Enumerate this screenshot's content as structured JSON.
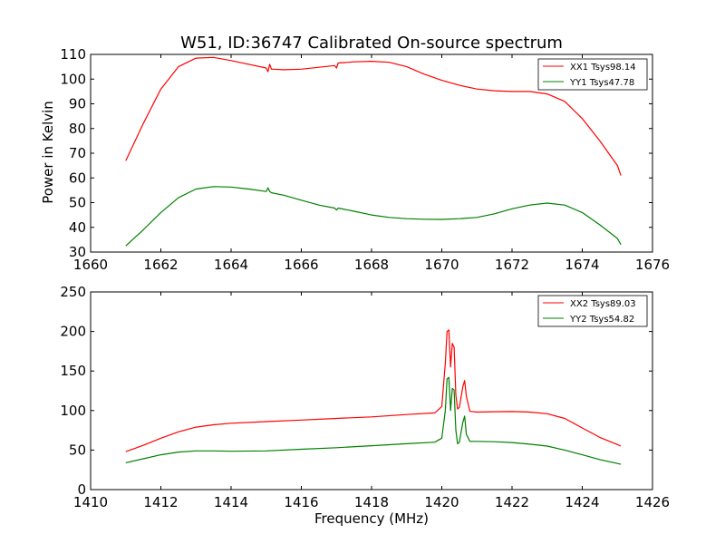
{
  "chart_data": [
    {
      "type": "line",
      "title": "W51, ID:36747 Calibrated On-source spectrum",
      "xlabel": "",
      "ylabel": "Power in Kelvin",
      "xlim": [
        1660,
        1676
      ],
      "ylim": [
        30,
        110
      ],
      "xticks": [
        "1660",
        "1662",
        "1664",
        "1666",
        "1668",
        "1670",
        "1672",
        "1674",
        "1676"
      ],
      "yticks": [
        "30",
        "40",
        "50",
        "60",
        "70",
        "80",
        "90",
        "100",
        "110"
      ],
      "legend_position": "top-right",
      "grid": false,
      "series": [
        {
          "name": "XX1 Tsys98.14",
          "color": "#ff0000",
          "x": [
            1661.0,
            1661.5,
            1662.0,
            1662.5,
            1663.0,
            1663.5,
            1664.0,
            1664.5,
            1665.0,
            1665.05,
            1665.1,
            1665.15,
            1665.2,
            1665.5,
            1666.0,
            1666.5,
            1666.95,
            1667.0,
            1667.05,
            1667.5,
            1668.0,
            1668.5,
            1669.0,
            1669.5,
            1670.0,
            1670.5,
            1671.0,
            1671.5,
            1672.0,
            1672.5,
            1673.0,
            1673.5,
            1674.0,
            1674.5,
            1675.0,
            1675.1
          ],
          "y": [
            67,
            82,
            96,
            105,
            108.5,
            108.8,
            107.5,
            106,
            104.5,
            103,
            106,
            104,
            104,
            103.8,
            104,
            104.8,
            105.5,
            104.5,
            106.5,
            107,
            107.2,
            106.8,
            105,
            102,
            99.5,
            97.5,
            96,
            95.3,
            95,
            95,
            94,
            91,
            84,
            75,
            65,
            61
          ]
        },
        {
          "name": "YY1 Tsys47.78",
          "color": "#008000",
          "x": [
            1661.0,
            1661.5,
            1662.0,
            1662.5,
            1663.0,
            1663.5,
            1664.0,
            1664.5,
            1665.0,
            1665.05,
            1665.1,
            1665.15,
            1665.5,
            1666.0,
            1666.5,
            1666.95,
            1667.0,
            1667.05,
            1667.5,
            1668.0,
            1668.5,
            1669.0,
            1669.5,
            1670.0,
            1670.5,
            1671.0,
            1671.5,
            1672.0,
            1672.5,
            1673.0,
            1673.5,
            1674.0,
            1674.5,
            1675.0,
            1675.1
          ],
          "y": [
            32.5,
            39,
            46,
            52,
            55.5,
            56.5,
            56.3,
            55.5,
            54.5,
            56,
            54.5,
            54,
            53,
            51,
            49,
            47.8,
            47,
            47.8,
            46.5,
            45,
            44,
            43.5,
            43.3,
            43.2,
            43.5,
            44,
            45.5,
            47.5,
            49,
            49.8,
            49,
            46,
            41,
            35.5,
            33
          ]
        }
      ]
    },
    {
      "type": "line",
      "title": "",
      "xlabel": "Frequency (MHz)",
      "ylabel": "",
      "xlim": [
        1410,
        1426
      ],
      "ylim": [
        0,
        250
      ],
      "xticks": [
        "1410",
        "1412",
        "1414",
        "1416",
        "1418",
        "1420",
        "1422",
        "1424",
        "1426"
      ],
      "yticks": [
        "0",
        "50",
        "100",
        "150",
        "200",
        "250"
      ],
      "legend_position": "top-right",
      "grid": false,
      "series": [
        {
          "name": "XX2 Tsys89.03",
          "color": "#ff0000",
          "x": [
            1411.0,
            1411.5,
            1412.0,
            1412.5,
            1413.0,
            1413.5,
            1414.0,
            1415.0,
            1416.0,
            1417.0,
            1418.0,
            1419.0,
            1419.8,
            1420.0,
            1420.1,
            1420.15,
            1420.2,
            1420.25,
            1420.3,
            1420.35,
            1420.4,
            1420.45,
            1420.5,
            1420.6,
            1420.65,
            1420.7,
            1420.8,
            1421.0,
            1421.5,
            1422.0,
            1422.5,
            1423.0,
            1423.5,
            1424.0,
            1424.5,
            1425.0,
            1425.1
          ],
          "y": [
            48,
            56,
            65,
            73,
            79,
            82,
            84,
            86,
            88,
            90,
            92,
            95,
            97,
            105,
            160,
            200,
            202,
            155,
            185,
            180,
            120,
            102,
            104,
            130,
            138,
            118,
            99,
            98,
            98.5,
            98.7,
            98,
            96,
            90,
            78,
            66,
            57,
            55
          ]
        },
        {
          "name": "YY2 Tsys54.82",
          "color": "#008000",
          "x": [
            1411.0,
            1411.5,
            1412.0,
            1412.5,
            1413.0,
            1413.5,
            1414.0,
            1415.0,
            1416.0,
            1417.0,
            1418.0,
            1419.0,
            1419.8,
            1420.0,
            1420.1,
            1420.15,
            1420.2,
            1420.25,
            1420.3,
            1420.35,
            1420.4,
            1420.45,
            1420.5,
            1420.6,
            1420.65,
            1420.7,
            1420.8,
            1421.0,
            1421.5,
            1422.0,
            1422.5,
            1423.0,
            1423.5,
            1424.0,
            1424.5,
            1425.0,
            1425.1
          ],
          "y": [
            34,
            39,
            44,
            47.5,
            49,
            49,
            48.5,
            49,
            51,
            53,
            55.5,
            58,
            60,
            65,
            100,
            140,
            142,
            100,
            128,
            126,
            75,
            58,
            60,
            85,
            93,
            70,
            61,
            61,
            60.5,
            59.5,
            57.5,
            55,
            50,
            44,
            38,
            33,
            32
          ]
        }
      ]
    }
  ]
}
